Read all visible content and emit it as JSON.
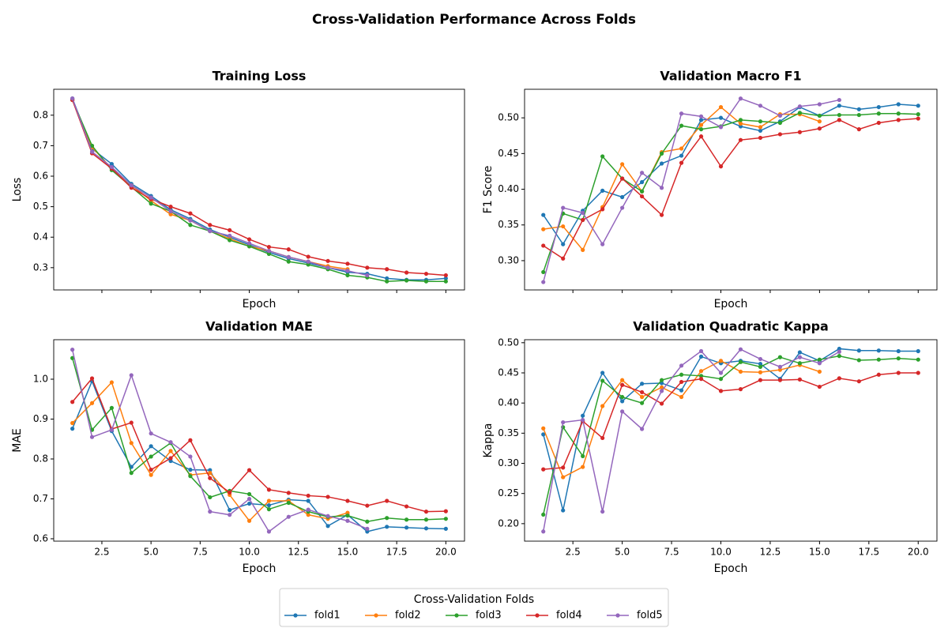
{
  "title": "Cross-Validation Performance Across Folds",
  "legend_title": "Cross-Validation Folds",
  "legend_position": "bottom",
  "chart_data": [
    {
      "type": "line",
      "title": "Training Loss",
      "xlabel": "Epoch",
      "ylabel": "Loss",
      "x": [
        1,
        2,
        3,
        4,
        5,
        6,
        7,
        8,
        9,
        10,
        11,
        12,
        13,
        14,
        15,
        16,
        17,
        18,
        19,
        20
      ],
      "xlim": [
        0.05,
        20.95
      ],
      "xticks": [
        2.5,
        5,
        7.5,
        10,
        12.5,
        15,
        17.5,
        20
      ],
      "xticklabels": false,
      "ylim": [
        0.227,
        0.885
      ],
      "yticks": [
        0.3,
        0.4,
        0.5,
        0.6,
        0.7,
        0.8
      ],
      "series": [
        {
          "name": "fold1",
          "color": "#1f77b4",
          "values": [
            0.855,
            0.69,
            0.64,
            0.575,
            0.535,
            0.49,
            0.46,
            0.425,
            0.4,
            0.375,
            0.35,
            0.33,
            0.315,
            0.3,
            0.285,
            0.28,
            0.265,
            0.26,
            0.26,
            0.265
          ]
        },
        {
          "name": "fold2",
          "color": "#ff7f0e",
          "values": [
            0.85,
            0.695,
            0.625,
            0.57,
            0.52,
            0.475,
            0.455,
            0.42,
            0.395,
            0.37,
            0.355,
            0.335,
            0.32,
            0.305,
            0.295,
            null,
            null,
            null,
            null,
            null
          ]
        },
        {
          "name": "fold3",
          "color": "#2ca02c",
          "values": [
            0.85,
            0.7,
            0.62,
            0.565,
            0.51,
            0.485,
            0.44,
            0.42,
            0.39,
            0.37,
            0.345,
            0.32,
            0.31,
            0.295,
            0.275,
            0.268,
            0.255,
            0.258,
            0.255,
            0.255
          ]
        },
        {
          "name": "fold4",
          "color": "#d62728",
          "values": [
            0.85,
            0.675,
            0.625,
            0.562,
            0.525,
            0.5,
            0.478,
            0.44,
            0.423,
            0.393,
            0.368,
            0.36,
            0.336,
            0.322,
            0.313,
            0.3,
            0.295,
            0.284,
            0.28,
            0.275
          ]
        },
        {
          "name": "fold5",
          "color": "#9467bd",
          "values": [
            0.855,
            0.68,
            0.63,
            0.57,
            0.53,
            0.485,
            0.455,
            0.42,
            0.405,
            0.38,
            0.355,
            0.335,
            0.32,
            0.3,
            0.29,
            0.275,
            null,
            null,
            null,
            null
          ]
        }
      ]
    },
    {
      "type": "line",
      "title": "Validation Macro F1",
      "xlabel": "Epoch",
      "ylabel": "F1 Score",
      "x": [
        1,
        2,
        3,
        4,
        5,
        6,
        7,
        8,
        9,
        10,
        11,
        12,
        13,
        14,
        15,
        16,
        17,
        18,
        19,
        20
      ],
      "xlim": [
        0.05,
        20.95
      ],
      "xticks": [
        2.5,
        5,
        7.5,
        10,
        12.5,
        15,
        17.5,
        20
      ],
      "xticklabels": false,
      "ylim": [
        0.259,
        0.54
      ],
      "yticks": [
        {
          "value": 0.3,
          "label": "0.30"
        },
        0.35,
        {
          "value": 0.4,
          "label": "0.40"
        },
        0.45,
        {
          "value": 0.5,
          "label": "0.50"
        }
      ],
      "series": [
        {
          "name": "fold1",
          "color": "#1f77b4",
          "values": [
            0.364,
            0.323,
            0.37,
            0.398,
            0.389,
            0.41,
            0.436,
            0.447,
            0.497,
            0.5,
            0.488,
            0.482,
            0.495,
            0.515,
            0.503,
            0.517,
            0.512,
            0.515,
            0.519,
            0.517
          ]
        },
        {
          "name": "fold2",
          "color": "#ff7f0e",
          "values": [
            0.344,
            0.348,
            0.315,
            0.375,
            0.435,
            0.397,
            0.452,
            0.457,
            0.49,
            0.515,
            0.492,
            0.487,
            0.505,
            0.505,
            0.495,
            null,
            null,
            null,
            null,
            null
          ]
        },
        {
          "name": "fold3",
          "color": "#2ca02c",
          "values": [
            0.284,
            0.366,
            0.357,
            0.446,
            0.415,
            0.397,
            0.45,
            0.489,
            0.484,
            0.488,
            0.497,
            0.495,
            0.493,
            0.507,
            0.503,
            0.504,
            0.504,
            0.506,
            0.506,
            0.505
          ]
        },
        {
          "name": "fold4",
          "color": "#d62728",
          "values": [
            0.321,
            0.303,
            0.357,
            0.372,
            0.415,
            0.39,
            0.364,
            0.437,
            0.474,
            0.432,
            0.469,
            0.472,
            0.477,
            0.48,
            0.485,
            0.497,
            0.484,
            0.493,
            0.497,
            0.499
          ]
        },
        {
          "name": "fold5",
          "color": "#9467bd",
          "values": [
            0.27,
            0.374,
            0.367,
            0.323,
            0.374,
            0.423,
            0.402,
            0.506,
            0.502,
            0.487,
            0.527,
            0.517,
            0.503,
            0.516,
            0.519,
            0.525,
            null,
            null,
            null,
            null
          ]
        }
      ]
    },
    {
      "type": "line",
      "title": "Validation MAE",
      "xlabel": "Epoch",
      "ylabel": "MAE",
      "x": [
        1,
        2,
        3,
        4,
        5,
        6,
        7,
        8,
        9,
        10,
        11,
        12,
        13,
        14,
        15,
        16,
        17,
        18,
        19,
        20
      ],
      "xlim": [
        0.05,
        20.95
      ],
      "xticks": [
        2.5,
        {
          "value": 5,
          "label": "5.0"
        },
        7.5,
        {
          "value": 10,
          "label": "10.0"
        },
        12.5,
        {
          "value": 15,
          "label": "15.0"
        },
        17.5,
        {
          "value": 20,
          "label": "20.0"
        }
      ],
      "ylim": [
        0.594,
        1.099
      ],
      "yticks": [
        0.6,
        0.7,
        0.8,
        0.9,
        {
          "value": 1,
          "label": "1.0"
        }
      ],
      "series": [
        {
          "name": "fold1",
          "color": "#1f77b4",
          "values": [
            0.876,
            0.995,
            0.87,
            0.78,
            0.832,
            0.795,
            0.773,
            0.772,
            0.672,
            0.688,
            0.684,
            0.698,
            0.695,
            0.632,
            0.66,
            0.618,
            0.63,
            0.628,
            0.626,
            0.625
          ]
        },
        {
          "name": "fold2",
          "color": "#ff7f0e",
          "values": [
            0.89,
            0.94,
            0.992,
            0.84,
            0.76,
            0.82,
            0.76,
            0.765,
            0.71,
            0.645,
            0.695,
            0.695,
            0.66,
            0.65,
            0.665,
            null,
            null,
            null,
            null,
            null
          ]
        },
        {
          "name": "fold3",
          "color": "#2ca02c",
          "values": [
            1.053,
            0.873,
            0.928,
            0.765,
            0.806,
            0.84,
            0.757,
            0.704,
            0.72,
            0.712,
            0.674,
            0.69,
            0.668,
            0.655,
            0.658,
            0.643,
            0.652,
            0.648,
            0.648,
            0.65
          ]
        },
        {
          "name": "fold4",
          "color": "#d62728",
          "values": [
            0.943,
            1.002,
            0.875,
            0.891,
            0.773,
            0.802,
            0.847,
            0.752,
            0.716,
            0.772,
            0.723,
            0.715,
            0.708,
            0.705,
            0.695,
            0.683,
            0.695,
            0.681,
            0.668,
            0.669
          ]
        },
        {
          "name": "fold5",
          "color": "#9467bd",
          "values": [
            1.074,
            0.855,
            0.873,
            1.01,
            0.864,
            0.842,
            0.806,
            0.668,
            0.66,
            0.7,
            0.618,
            0.655,
            0.673,
            0.657,
            0.645,
            0.625,
            null,
            null,
            null,
            null
          ]
        }
      ]
    },
    {
      "type": "line",
      "title": "Validation Quadratic Kappa",
      "xlabel": "Epoch",
      "ylabel": "Kappa",
      "x": [
        1,
        2,
        3,
        4,
        5,
        6,
        7,
        8,
        9,
        10,
        11,
        12,
        13,
        14,
        15,
        16,
        17,
        18,
        19,
        20
      ],
      "xlim": [
        0.05,
        20.95
      ],
      "xticks": [
        2.5,
        {
          "value": 5,
          "label": "5.0"
        },
        7.5,
        {
          "value": 10,
          "label": "10.0"
        },
        12.5,
        {
          "value": 15,
          "label": "15.0"
        },
        17.5,
        {
          "value": 20,
          "label": "20.0"
        }
      ],
      "ylim": [
        0.171,
        0.505
      ],
      "yticks": [
        {
          "value": 0.2,
          "label": "0.20"
        },
        0.25,
        {
          "value": 0.3,
          "label": "0.30"
        },
        0.35,
        {
          "value": 0.4,
          "label": "0.40"
        },
        0.45,
        {
          "value": 0.5,
          "label": "0.50"
        }
      ],
      "series": [
        {
          "name": "fold1",
          "color": "#1f77b4",
          "values": [
            0.348,
            0.222,
            0.379,
            0.45,
            0.403,
            0.432,
            0.433,
            0.421,
            0.477,
            0.466,
            0.47,
            0.465,
            0.44,
            0.484,
            0.47,
            0.49,
            0.487,
            0.487,
            0.486,
            0.486
          ]
        },
        {
          "name": "fold2",
          "color": "#ff7f0e",
          "values": [
            0.358,
            0.277,
            0.294,
            0.395,
            0.438,
            0.41,
            0.426,
            0.41,
            0.453,
            0.47,
            0.452,
            0.451,
            0.455,
            0.463,
            0.452,
            null,
            null,
            null,
            null,
            null
          ]
        },
        {
          "name": "fold3",
          "color": "#2ca02c",
          "values": [
            0.215,
            0.36,
            0.312,
            0.437,
            0.41,
            0.4,
            0.438,
            0.447,
            0.445,
            0.44,
            0.468,
            0.46,
            0.476,
            0.466,
            0.472,
            0.478,
            0.471,
            0.472,
            0.474,
            0.472
          ]
        },
        {
          "name": "fold4",
          "color": "#d62728",
          "values": [
            0.29,
            0.293,
            0.37,
            0.342,
            0.43,
            0.418,
            0.399,
            0.435,
            0.44,
            0.42,
            0.423,
            0.438,
            0.438,
            0.439,
            0.427,
            0.441,
            0.436,
            0.447,
            0.45,
            0.45
          ]
        },
        {
          "name": "fold5",
          "color": "#9467bd",
          "values": [
            0.187,
            0.368,
            0.372,
            0.22,
            0.386,
            0.357,
            0.42,
            0.462,
            0.486,
            0.45,
            0.489,
            0.473,
            0.46,
            0.476,
            0.466,
            0.485,
            null,
            null,
            null,
            null
          ]
        }
      ]
    }
  ]
}
